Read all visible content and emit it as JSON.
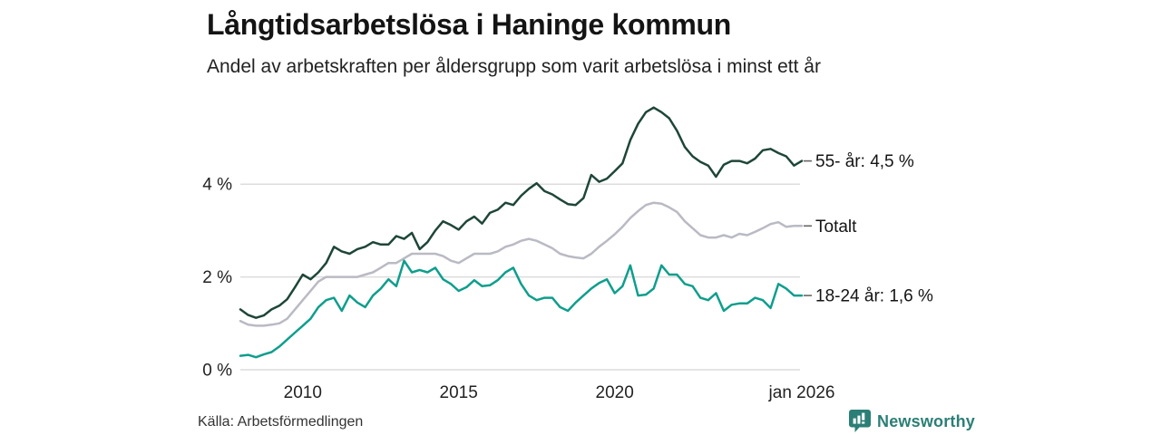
{
  "header": {
    "title": "Långtidsarbetslösa i Haninge kommun",
    "subtitle": "Andel av arbetskraften per åldersgrupp som varit arbetslösa i minst ett år"
  },
  "footer": {
    "source": "Källa: Arbetsförmedlingen",
    "logo_text": "Newsworthy"
  },
  "colors": {
    "series_55": "#1e4638",
    "series_total": "#b9bac3",
    "series_18_24": "#0f9e8c",
    "gridline": "#dcdcdc",
    "tick_dash": "#666666",
    "logo": "#2b7f76"
  },
  "chart_data": {
    "type": "line",
    "title": "Långtidsarbetslösa i Haninge kommun",
    "subtitle": "Andel av arbetskraften per åldersgrupp som varit arbetslösa i minst ett år",
    "unit": "%",
    "grid": "horizontal only",
    "legend_position": "right, at line ends",
    "x_axis": {
      "range": [
        2008,
        2026
      ],
      "ticks": [
        {
          "label": "2010",
          "x": 2010
        },
        {
          "label": "2015",
          "x": 2015
        },
        {
          "label": "2020",
          "x": 2020
        },
        {
          "label": "jan 2026",
          "x": 2026
        }
      ]
    },
    "y_axis": {
      "range": [
        0,
        6
      ],
      "ticks": [
        {
          "label": "0 %",
          "value": 0
        },
        {
          "label": "2 %",
          "value": 2
        },
        {
          "label": "4 %",
          "value": 4
        }
      ]
    },
    "x_start": 2008,
    "x_step": 0.25,
    "series": [
      {
        "id": "55-ar",
        "name": "55- år",
        "end_label": "55- år: 4,5 %",
        "latest_value": 4.5,
        "color_key": "series_55",
        "z": 3,
        "values": [
          1.3,
          1.18,
          1.12,
          1.17,
          1.3,
          1.38,
          1.52,
          1.78,
          2.05,
          1.95,
          2.1,
          2.3,
          2.65,
          2.55,
          2.5,
          2.6,
          2.65,
          2.75,
          2.7,
          2.7,
          2.88,
          2.82,
          2.95,
          2.6,
          2.75,
          3.0,
          3.2,
          3.12,
          3.02,
          3.2,
          3.3,
          3.15,
          3.38,
          3.45,
          3.6,
          3.55,
          3.75,
          3.9,
          4.02,
          3.85,
          3.78,
          3.67,
          3.57,
          3.55,
          3.7,
          4.2,
          4.05,
          4.12,
          4.28,
          4.45,
          4.95,
          5.3,
          5.55,
          5.65,
          5.55,
          5.42,
          5.15,
          4.8,
          4.6,
          4.48,
          4.4,
          4.16,
          4.42,
          4.5,
          4.5,
          4.45,
          4.55,
          4.73,
          4.76,
          4.67,
          4.6,
          4.4,
          4.5
        ]
      },
      {
        "id": "totalt",
        "name": "Totalt",
        "end_label": "Totalt",
        "latest_value": 3.1,
        "color_key": "series_total",
        "z": 1,
        "values": [
          1.05,
          0.97,
          0.95,
          0.95,
          0.97,
          1.0,
          1.1,
          1.3,
          1.5,
          1.7,
          1.9,
          2.0,
          2.0,
          2.0,
          2.0,
          2.0,
          2.05,
          2.1,
          2.2,
          2.3,
          2.3,
          2.4,
          2.5,
          2.5,
          2.5,
          2.5,
          2.45,
          2.35,
          2.3,
          2.4,
          2.5,
          2.5,
          2.5,
          2.55,
          2.65,
          2.7,
          2.78,
          2.82,
          2.78,
          2.7,
          2.62,
          2.5,
          2.45,
          2.42,
          2.4,
          2.5,
          2.65,
          2.78,
          2.92,
          3.08,
          3.27,
          3.42,
          3.55,
          3.6,
          3.58,
          3.5,
          3.4,
          3.2,
          3.05,
          2.9,
          2.85,
          2.85,
          2.9,
          2.85,
          2.93,
          2.9,
          2.97,
          3.05,
          3.14,
          3.18,
          3.08,
          3.1,
          3.1
        ]
      },
      {
        "id": "18-24-ar",
        "name": "18-24 år",
        "end_label": "18-24 år: 1,6 %",
        "latest_value": 1.6,
        "color_key": "series_18_24",
        "z": 2,
        "values": [
          0.3,
          0.32,
          0.27,
          0.33,
          0.38,
          0.5,
          0.65,
          0.8,
          0.95,
          1.1,
          1.35,
          1.5,
          1.55,
          1.27,
          1.6,
          1.45,
          1.35,
          1.6,
          1.75,
          1.95,
          1.8,
          2.35,
          2.1,
          2.15,
          2.1,
          2.2,
          1.95,
          1.85,
          1.7,
          1.78,
          1.93,
          1.8,
          1.82,
          1.93,
          2.1,
          2.2,
          1.85,
          1.6,
          1.5,
          1.55,
          1.55,
          1.35,
          1.27,
          1.45,
          1.6,
          1.75,
          1.87,
          1.95,
          1.65,
          1.8,
          2.25,
          1.6,
          1.62,
          1.75,
          2.25,
          2.05,
          2.05,
          1.85,
          1.8,
          1.55,
          1.5,
          1.65,
          1.27,
          1.4,
          1.43,
          1.43,
          1.55,
          1.5,
          1.33,
          1.85,
          1.75,
          1.6,
          1.6
        ]
      }
    ]
  }
}
